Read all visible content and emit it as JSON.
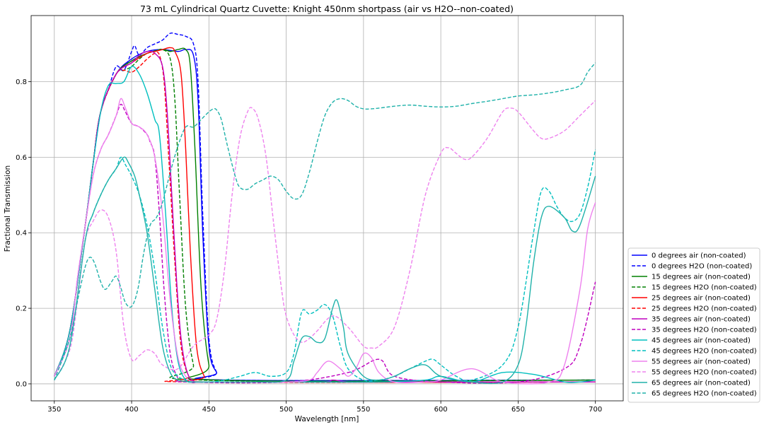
{
  "chart_data": {
    "type": "line",
    "title": "73 mL Cylindrical Quartz Cuvette: Knight 450nm shortpass (air vs H2O--non-coated)",
    "xlabel": "Wavelength [nm]",
    "ylabel": "Fractional Transmission",
    "xlim": [
      335,
      718
    ],
    "ylim": [
      -0.045,
      0.975
    ],
    "xticks": [
      350,
      400,
      450,
      500,
      550,
      600,
      650,
      700
    ],
    "yticks": [
      0.0,
      0.2,
      0.4,
      0.6,
      0.8
    ],
    "xtick_labels": [
      "350",
      "400",
      "450",
      "500",
      "550",
      "600",
      "650",
      "700"
    ],
    "ytick_labels": [
      "0.0",
      "0.2",
      "0.4",
      "0.6",
      "0.8"
    ],
    "grid": true,
    "legend_position": "lower-right outside",
    "series": [
      {
        "name": "0 degrees air (non-coated)",
        "color": "#0000ff",
        "dash": "solid",
        "x": [
          350,
          360,
          370,
          375,
          380,
          390,
          400,
          410,
          420,
          430,
          435,
          440,
          443,
          446,
          450,
          455,
          460,
          700
        ],
        "y": [
          0.02,
          0.14,
          0.42,
          0.58,
          0.72,
          0.82,
          0.86,
          0.88,
          0.885,
          0.88,
          0.885,
          0.87,
          0.75,
          0.4,
          0.1,
          0.03,
          0.01,
          0.01
        ]
      },
      {
        "name": "0 degrees H2O (non-coated)",
        "color": "#0000ff",
        "dash": "dashed",
        "x": [
          350,
          360,
          370,
          375,
          380,
          385,
          390,
          395,
          400,
          402,
          405,
          410,
          415,
          420,
          425,
          430,
          435,
          440,
          443,
          446,
          450,
          455,
          460,
          700
        ],
        "y": [
          0.02,
          0.14,
          0.42,
          0.58,
          0.72,
          0.78,
          0.84,
          0.83,
          0.88,
          0.895,
          0.87,
          0.89,
          0.9,
          0.91,
          0.928,
          0.925,
          0.92,
          0.9,
          0.8,
          0.45,
          0.12,
          0.03,
          0.01,
          0.01
        ]
      },
      {
        "name": "15 degrees air (non-coated)",
        "color": "#008000",
        "dash": "solid",
        "x": [
          350,
          360,
          370,
          375,
          380,
          390,
          400,
          410,
          420,
          425,
          430,
          435,
          438,
          441,
          445,
          450,
          455,
          700
        ],
        "y": [
          0.02,
          0.14,
          0.42,
          0.58,
          0.72,
          0.82,
          0.855,
          0.875,
          0.885,
          0.88,
          0.885,
          0.885,
          0.84,
          0.62,
          0.25,
          0.05,
          0.01,
          0.01
        ]
      },
      {
        "name": "15 degrees H2O (non-coated)",
        "color": "#008000",
        "dash": "dashed",
        "x": [
          350,
          360,
          370,
          375,
          380,
          390,
          395,
          400,
          405,
          410,
          415,
          420,
          425,
          428,
          431,
          435,
          440,
          445,
          700
        ],
        "y": [
          0.02,
          0.14,
          0.42,
          0.58,
          0.72,
          0.82,
          0.83,
          0.84,
          0.86,
          0.875,
          0.88,
          0.885,
          0.86,
          0.75,
          0.5,
          0.2,
          0.05,
          0.01,
          0.01
        ]
      },
      {
        "name": "25 degrees air (non-coated)",
        "color": "#ff0000",
        "dash": "solid",
        "x": [
          350,
          360,
          370,
          375,
          380,
          390,
          400,
          410,
          415,
          420,
          425,
          428,
          432,
          435,
          438,
          442,
          447,
          452,
          700
        ],
        "y": [
          0.02,
          0.14,
          0.42,
          0.58,
          0.72,
          0.82,
          0.85,
          0.875,
          0.88,
          0.885,
          0.89,
          0.88,
          0.82,
          0.62,
          0.35,
          0.1,
          0.02,
          0.005,
          0.005
        ]
      },
      {
        "name": "25 degrees H2O (non-coated)",
        "color": "#ff0000",
        "dash": "dashed",
        "x": [
          350,
          360,
          370,
          375,
          380,
          390,
          395,
          400,
          405,
          410,
          415,
          418,
          421,
          424,
          428,
          432,
          437,
          442,
          700
        ],
        "y": [
          0.02,
          0.14,
          0.42,
          0.58,
          0.72,
          0.82,
          0.83,
          0.825,
          0.84,
          0.86,
          0.875,
          0.87,
          0.8,
          0.6,
          0.32,
          0.1,
          0.02,
          0.005,
          0.005
        ]
      },
      {
        "name": "35 degrees air (non-coated)",
        "color": "#bf00bf",
        "dash": "solid",
        "x": [
          350,
          360,
          370,
          375,
          380,
          390,
          400,
          405,
          410,
          415,
          420,
          423,
          426,
          429,
          432,
          436,
          441,
          446,
          520,
          530,
          540,
          560,
          600,
          700
        ],
        "y": [
          0.02,
          0.14,
          0.42,
          0.58,
          0.72,
          0.82,
          0.85,
          0.87,
          0.88,
          0.875,
          0.84,
          0.72,
          0.5,
          0.28,
          0.12,
          0.03,
          0.005,
          0.005,
          0.005,
          0.01,
          0.005,
          0.005,
          0.005,
          0.005
        ]
      },
      {
        "name": "35 degrees H2O (non-coated)",
        "color": "#bf00bf",
        "dash": "dashed",
        "x": [
          350,
          360,
          365,
          370,
          375,
          380,
          385,
          390,
          393,
          396,
          400,
          405,
          410,
          412,
          415,
          418,
          421,
          425,
          430,
          435,
          500,
          540,
          560,
          570,
          600,
          650,
          680,
          690,
          700
        ],
        "y": [
          0.02,
          0.12,
          0.28,
          0.42,
          0.55,
          0.62,
          0.66,
          0.71,
          0.74,
          0.72,
          0.69,
          0.68,
          0.66,
          0.64,
          0.6,
          0.45,
          0.25,
          0.08,
          0.015,
          0.005,
          0.005,
          0.03,
          0.065,
          0.02,
          0.005,
          0.005,
          0.04,
          0.1,
          0.27
        ]
      },
      {
        "name": "45 degrees air (non-coated)",
        "color": "#00bfbf",
        "dash": "solid",
        "x": [
          350,
          360,
          370,
          375,
          380,
          385,
          390,
          395,
          400,
          405,
          410,
          415,
          418,
          422,
          426,
          430,
          435,
          440,
          445,
          500,
          560,
          590,
          600,
          620,
          640,
          660,
          680,
          690,
          700
        ],
        "y": [
          0.02,
          0.14,
          0.42,
          0.58,
          0.72,
          0.79,
          0.795,
          0.8,
          0.84,
          0.82,
          0.77,
          0.7,
          0.66,
          0.45,
          0.2,
          0.06,
          0.01,
          0.005,
          0.005,
          0.005,
          0.005,
          0.01,
          0.02,
          0.005,
          0.03,
          0.025,
          0.005,
          0.005,
          0.01
        ]
      },
      {
        "name": "45 degrees H2O (non-coated)",
        "color": "#00bfbf",
        "dash": "dashed",
        "x": [
          350,
          360,
          370,
          375,
          380,
          385,
          390,
          393,
          396,
          400,
          405,
          410,
          415,
          420,
          425,
          430,
          435,
          440,
          450,
          460,
          470,
          480,
          490,
          500,
          505,
          510,
          515,
          520,
          525,
          530,
          535,
          540,
          550,
          560,
          570,
          580,
          590,
          595,
          600,
          610,
          620,
          640,
          650,
          660,
          665,
          670,
          675,
          680,
          685,
          690,
          695,
          700
        ],
        "y": [
          0.01,
          0.1,
          0.38,
          0.45,
          0.5,
          0.54,
          0.57,
          0.6,
          0.58,
          0.55,
          0.5,
          0.42,
          0.3,
          0.15,
          0.05,
          0.02,
          0.01,
          0.005,
          0.005,
          0.01,
          0.02,
          0.03,
          0.02,
          0.03,
          0.08,
          0.19,
          0.185,
          0.195,
          0.21,
          0.18,
          0.1,
          0.04,
          0.01,
          0.01,
          0.02,
          0.04,
          0.06,
          0.065,
          0.05,
          0.02,
          0.01,
          0.05,
          0.15,
          0.4,
          0.51,
          0.51,
          0.47,
          0.44,
          0.43,
          0.45,
          0.52,
          0.62
        ]
      },
      {
        "name": "55 degrees air (non-coated)",
        "color": "#ee82ee",
        "dash": "solid",
        "x": [
          350,
          360,
          365,
          370,
          375,
          380,
          385,
          390,
          393,
          396,
          400,
          405,
          410,
          415,
          420,
          425,
          430,
          435,
          440,
          450,
          470,
          500,
          515,
          520,
          527,
          535,
          540,
          545,
          550,
          555,
          560,
          570,
          590,
          600,
          620,
          640,
          670,
          680,
          690,
          695,
          700
        ],
        "y": [
          0.02,
          0.12,
          0.28,
          0.42,
          0.55,
          0.62,
          0.66,
          0.71,
          0.755,
          0.73,
          0.69,
          0.68,
          0.66,
          0.6,
          0.45,
          0.22,
          0.07,
          0.02,
          0.005,
          0.005,
          0.005,
          0.005,
          0.01,
          0.03,
          0.06,
          0.04,
          0.02,
          0.04,
          0.08,
          0.07,
          0.03,
          0.005,
          0.005,
          0.01,
          0.04,
          0.005,
          0.005,
          0.05,
          0.25,
          0.41,
          0.48
        ]
      },
      {
        "name": "55 degrees H2O (non-coated)",
        "color": "#ee82ee",
        "dash": "dashed",
        "x": [
          350,
          360,
          365,
          370,
          375,
          380,
          385,
          390,
          395,
          400,
          405,
          410,
          415,
          420,
          430,
          440,
          450,
          455,
          460,
          465,
          470,
          475,
          478,
          482,
          487,
          492,
          497,
          500,
          505,
          510,
          515,
          520,
          530,
          540,
          550,
          555,
          560,
          570,
          580,
          590,
          600,
          605,
          610,
          615,
          620,
          630,
          640,
          645,
          650,
          660,
          665,
          670,
          680,
          690,
          700
        ],
        "y": [
          0.01,
          0.09,
          0.22,
          0.38,
          0.43,
          0.46,
          0.44,
          0.35,
          0.15,
          0.065,
          0.075,
          0.09,
          0.08,
          0.05,
          0.04,
          0.1,
          0.13,
          0.17,
          0.3,
          0.5,
          0.65,
          0.72,
          0.73,
          0.7,
          0.6,
          0.42,
          0.25,
          0.18,
          0.13,
          0.11,
          0.12,
          0.14,
          0.18,
          0.15,
          0.1,
          0.095,
          0.1,
          0.15,
          0.3,
          0.5,
          0.61,
          0.625,
          0.61,
          0.595,
          0.6,
          0.65,
          0.72,
          0.73,
          0.72,
          0.67,
          0.65,
          0.65,
          0.67,
          0.71,
          0.75
        ]
      },
      {
        "name": "65 degrees air (non-coated)",
        "color": "#20b2aa",
        "dash": "solid",
        "x": [
          350,
          360,
          370,
          375,
          380,
          385,
          390,
          395,
          398,
          402,
          405,
          410,
          415,
          420,
          425,
          430,
          440,
          450,
          480,
          500,
          505,
          510,
          515,
          520,
          525,
          530,
          533,
          537,
          540,
          550,
          560,
          570,
          580,
          590,
          600,
          620,
          640,
          650,
          655,
          660,
          665,
          670,
          680,
          685,
          690,
          700
        ],
        "y": [
          0.01,
          0.1,
          0.38,
          0.45,
          0.5,
          0.54,
          0.57,
          0.6,
          0.585,
          0.55,
          0.5,
          0.4,
          0.25,
          0.1,
          0.03,
          0.01,
          0.005,
          0.005,
          0.005,
          0.01,
          0.06,
          0.12,
          0.125,
          0.11,
          0.12,
          0.2,
          0.22,
          0.15,
          0.08,
          0.02,
          0.01,
          0.02,
          0.04,
          0.05,
          0.02,
          0.005,
          0.005,
          0.05,
          0.15,
          0.32,
          0.44,
          0.47,
          0.44,
          0.405,
          0.42,
          0.55
        ]
      },
      {
        "name": "65 degrees H2O (non-coated)",
        "color": "#20b2aa",
        "dash": "dashed",
        "x": [
          350,
          360,
          365,
          370,
          373,
          376,
          380,
          383,
          387,
          390,
          393,
          396,
          400,
          404,
          408,
          412,
          416,
          420,
          425,
          430,
          435,
          440,
          445,
          450,
          453,
          455,
          458,
          462,
          467,
          470,
          475,
          480,
          485,
          490,
          495,
          500,
          505,
          510,
          515,
          520,
          525,
          530,
          535,
          540,
          545,
          550,
          555,
          560,
          570,
          580,
          590,
          600,
          610,
          620,
          630,
          640,
          650,
          660,
          670,
          680,
          690,
          695,
          700
        ],
        "y": [
          0.01,
          0.12,
          0.22,
          0.31,
          0.335,
          0.32,
          0.27,
          0.25,
          0.27,
          0.285,
          0.255,
          0.215,
          0.205,
          0.25,
          0.35,
          0.42,
          0.44,
          0.48,
          0.56,
          0.63,
          0.68,
          0.68,
          0.7,
          0.72,
          0.728,
          0.725,
          0.7,
          0.63,
          0.55,
          0.52,
          0.515,
          0.53,
          0.54,
          0.55,
          0.54,
          0.51,
          0.49,
          0.5,
          0.56,
          0.64,
          0.71,
          0.745,
          0.755,
          0.75,
          0.735,
          0.728,
          0.728,
          0.73,
          0.735,
          0.738,
          0.735,
          0.733,
          0.735,
          0.742,
          0.748,
          0.755,
          0.762,
          0.765,
          0.77,
          0.778,
          0.79,
          0.825,
          0.85
        ]
      }
    ]
  }
}
